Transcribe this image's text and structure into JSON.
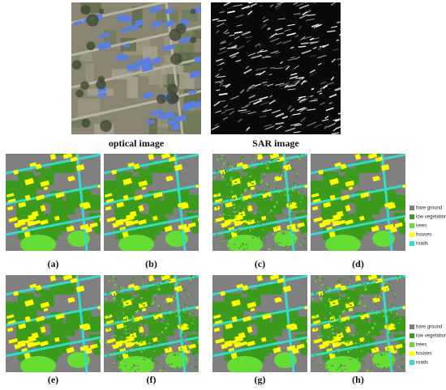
{
  "images": [
    {
      "caption": "optical image"
    },
    {
      "caption": "SAR image"
    }
  ],
  "maps": [
    {
      "label": "(a)"
    },
    {
      "label": "(b)"
    },
    {
      "label": "(c)"
    },
    {
      "label": "(d)"
    },
    {
      "label": "(e)"
    },
    {
      "label": "(f)"
    },
    {
      "label": "(g)"
    },
    {
      "label": "(h)"
    }
  ],
  "legends": [
    {
      "items": [
        {
          "name": "bare ground",
          "color": "#808080"
        },
        {
          "name": "low vegetation",
          "color": "#3c9a1c"
        },
        {
          "name": "trees",
          "color": "#66dd33"
        },
        {
          "name": "houses",
          "color": "#ffff00"
        },
        {
          "name": "roads",
          "color": "#33ddcc"
        }
      ]
    },
    {
      "items": [
        {
          "name": "bare ground",
          "color": "#808080"
        },
        {
          "name": "low vegetation",
          "color": "#3c9a1c"
        },
        {
          "name": "trees",
          "color": "#66dd33"
        },
        {
          "name": "houses",
          "color": "#ffff00"
        },
        {
          "name": "roads",
          "color": "#33ddcc"
        }
      ]
    }
  ]
}
